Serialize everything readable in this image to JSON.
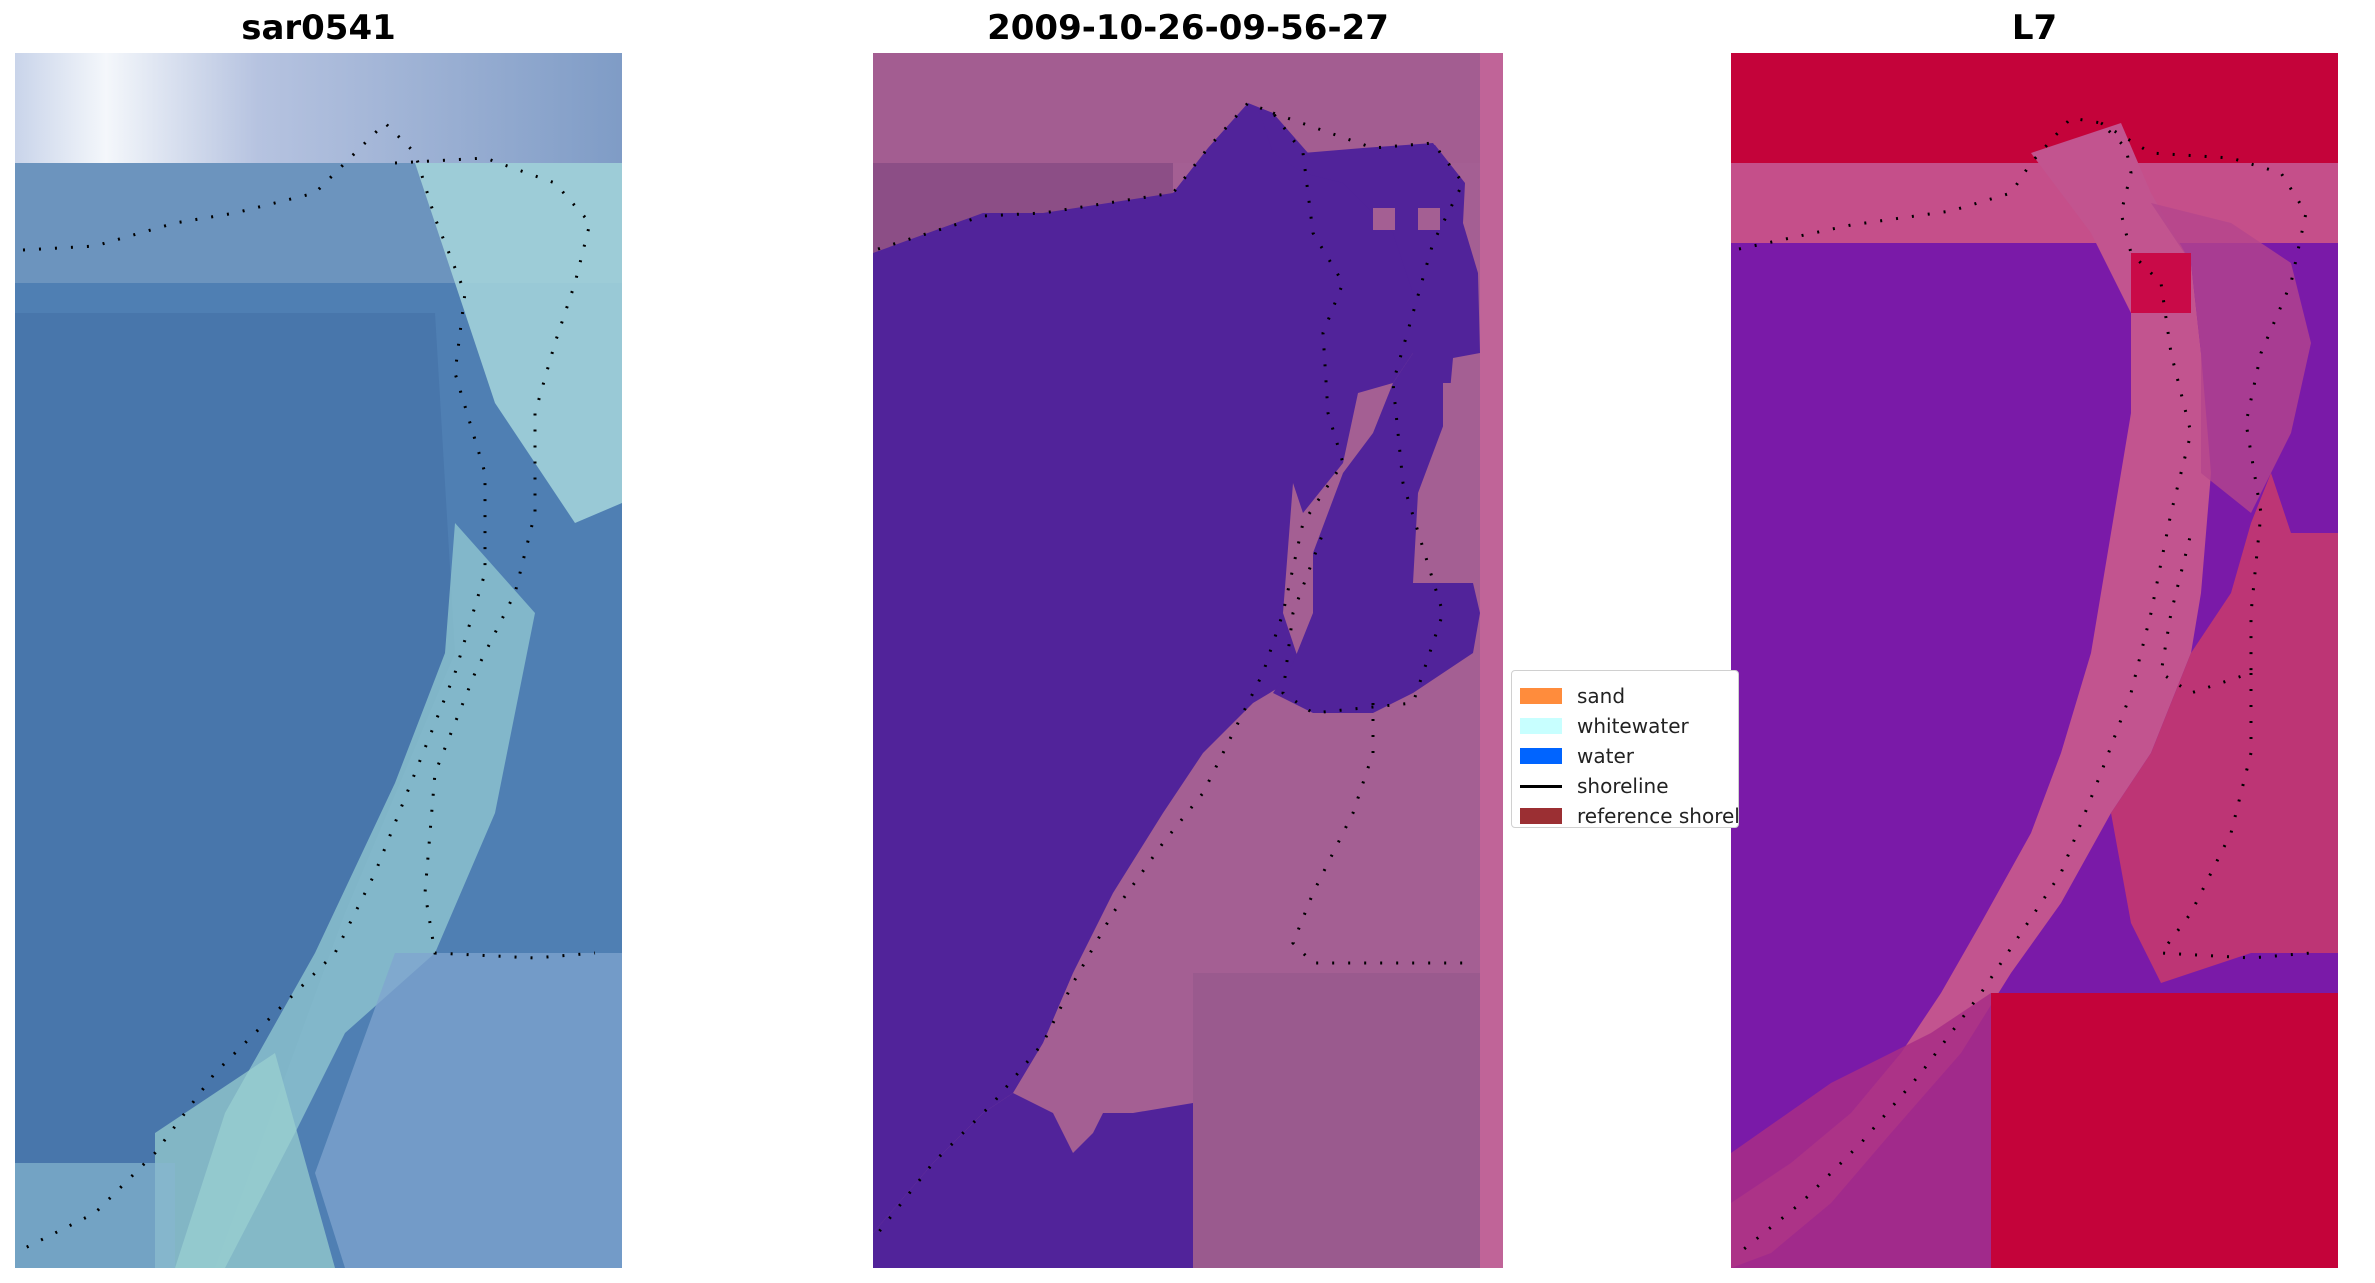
{
  "panels": [
    {
      "title": "sar0541"
    },
    {
      "title": "2009-10-26-09-56-27"
    },
    {
      "title": "L7"
    }
  ],
  "legend": {
    "items": [
      {
        "label": "sand",
        "color": "#ff8c3c"
      },
      {
        "label": "whitewater",
        "color": "#c8ffff"
      },
      {
        "label": "water",
        "color": "#0064ff"
      },
      {
        "label": "shoreline",
        "color": "#000000"
      },
      {
        "label": "reference shoreline",
        "color": "#9b2f33"
      }
    ]
  },
  "colors": {
    "classified_water": "#51239a",
    "classified_land": "#a45f93",
    "classified_edge": "#c06498",
    "rgb_water": "#4a7ab0",
    "rgb_surf": "#9fd6dc",
    "index_water": "#7a1aa8",
    "index_land": "#c4033a"
  }
}
